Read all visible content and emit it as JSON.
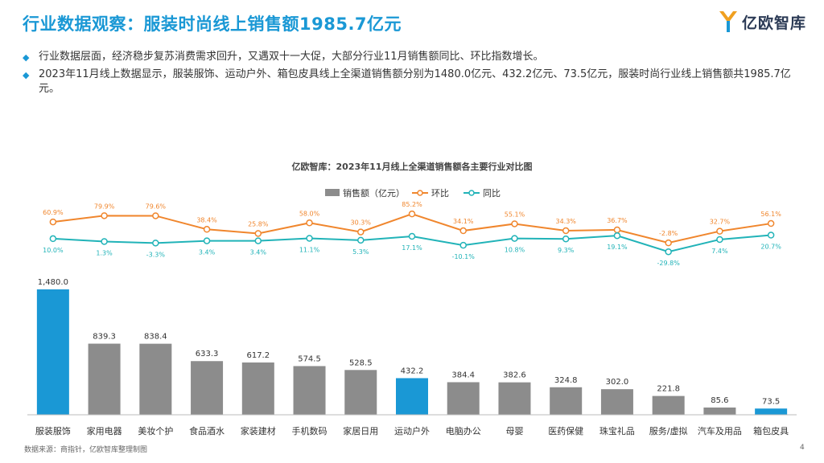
{
  "header": {
    "title": "行业数据观察：服装时尚线上销售额1985.7亿元",
    "logo_text": "亿欧智库"
  },
  "bullets": [
    "行业数据层面，经济稳步复苏消费需求回升，又遇双十一大促，大部分行业11月销售额同比、环比指数增长。",
    "2023年11月线上数据显示，服装服饰、运动户外、箱包皮具线上全渠道销售额分别为1480.0亿元、432.2亿元、73.5亿元，服装时尚行业线上销售额共1985.7亿元。"
  ],
  "chart_data": {
    "type": "bar",
    "title": "亿欧智库：2023年11月线上全渠道销售额各主要行业对比图",
    "categories": [
      "服装服饰",
      "家用电器",
      "美妆个护",
      "食品酒水",
      "家装建材",
      "手机数码",
      "家居日用",
      "运动户外",
      "电脑办公",
      "母婴",
      "医药保健",
      "珠宝礼品",
      "服务/虚拟",
      "汽车及用品",
      "箱包皮具"
    ],
    "series": [
      {
        "name": "销售额（亿元）",
        "type": "bar",
        "values": [
          1480.0,
          839.3,
          838.4,
          633.3,
          617.2,
          574.5,
          528.5,
          432.2,
          384.4,
          382.6,
          324.8,
          302.0,
          221.8,
          85.6,
          73.5
        ],
        "labels": [
          "1,480.0",
          "839.3",
          "838.4",
          "633.3",
          "617.2",
          "574.5",
          "528.5",
          "432.2",
          "384.4",
          "382.6",
          "324.8",
          "302.0",
          "221.8",
          "85.6",
          "73.5"
        ]
      },
      {
        "name": "环比",
        "type": "line",
        "values": [
          60.9,
          79.9,
          79.6,
          38.4,
          25.8,
          58.0,
          30.3,
          85.2,
          34.1,
          55.1,
          34.3,
          36.7,
          -2.8,
          32.7,
          56.1
        ],
        "labels": [
          "60.9%",
          "79.9%",
          "79.6%",
          "38.4%",
          "25.8%",
          "58.0%",
          "30.3%",
          "85.2%",
          "34.1%",
          "55.1%",
          "34.3%",
          "36.7%",
          "-2.8%",
          "32.7%",
          "56.1%"
        ]
      },
      {
        "name": "同比",
        "type": "line",
        "values": [
          10.0,
          1.3,
          -3.3,
          3.4,
          3.4,
          11.1,
          5.3,
          17.1,
          -10.1,
          10.8,
          9.3,
          19.1,
          -29.8,
          7.4,
          20.7
        ],
        "labels": [
          "10.0%",
          "1.3%",
          "-3.3%",
          "3.4%",
          "3.4%",
          "11.1%",
          "5.3%",
          "17.1%",
          "-10.1%",
          "10.8%",
          "9.3%",
          "19.1%",
          "-29.8%",
          "7.4%",
          "20.7%"
        ]
      }
    ],
    "highlight_categories": [
      "服装服饰",
      "运动户外",
      "箱包皮具"
    ],
    "legend_position": "top-center",
    "grid": false,
    "colors": {
      "bar": "#8c8c8c",
      "bar_highlight": "#1a98d5",
      "mom": "#f0862d",
      "yoy": "#21b3b8"
    }
  },
  "footer": {
    "source": "数据来源：商指针，亿欧智库整理制图",
    "page": "4"
  }
}
